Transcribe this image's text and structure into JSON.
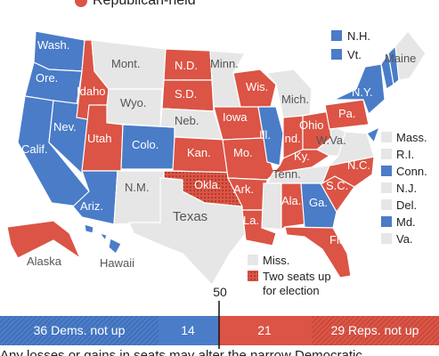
{
  "legend": {
    "republican": "Republican-held"
  },
  "states": {
    "wash": "Wash.",
    "ore": "Ore.",
    "calif": "Calif.",
    "nev": "Nev.",
    "idaho": "Idaho",
    "mont": "Mont.",
    "wyo": "Wyo.",
    "utah": "Utah",
    "colo": "Colo.",
    "ariz": "Ariz.",
    "nm": "N.M.",
    "nd": "N.D.",
    "sd": "S.D.",
    "neb": "Neb.",
    "kan": "Kan.",
    "okla": "Okla.",
    "texas": "Texas",
    "minn": "Minn.",
    "iowa": "Iowa",
    "mo": "Mo.",
    "ark": "Ark.",
    "la": "La.",
    "wis": "Wis.",
    "ill": "Ill.",
    "mich": "Mich.",
    "ind": "Ind.",
    "ohio": "Ohio",
    "ky": "Ky.",
    "tenn": "Tenn.",
    "ala": "Ala.",
    "ga": "Ga.",
    "fla": "Fla.",
    "sc": "S.C.",
    "nc": "N.C.",
    "wva": "W.Va.",
    "pa": "Pa.",
    "ny": "N.Y.",
    "maine": "Maine",
    "alaska": "Alaska",
    "hawaii": "Hawaii"
  },
  "small_states": {
    "nh": "N.H.",
    "vt": "Vt.",
    "mass": "Mass.",
    "ri": "R.I.",
    "conn": "Conn.",
    "nj": "N.J.",
    "del": "Del.",
    "md": "Md.",
    "va": "Va.",
    "miss": "Miss."
  },
  "key": {
    "two_seats_1": "Two seats up",
    "two_seats_2": "for election"
  },
  "bar": {
    "majority": "50",
    "segments": [
      "36 Dems. not up",
      "14",
      "21",
      "29 Reps. not up"
    ]
  },
  "note": "Any losses or gains in seats may alter the narrow Democratic"
}
